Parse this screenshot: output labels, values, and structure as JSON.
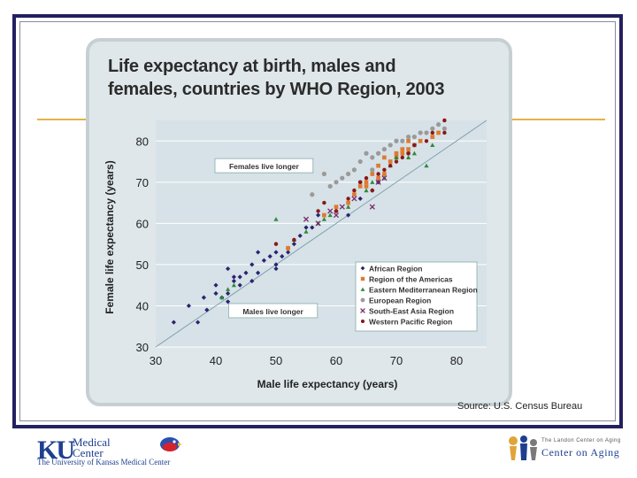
{
  "slide": {
    "source_text": "Source: U.S. Census Bureau",
    "colors": {
      "frame": "#232060",
      "accent_line": "#e3b24a",
      "card": "#dfe7ea",
      "plot_bg": "#d6e2e7"
    },
    "logo_left": {
      "mark": "KU",
      "medical": "Medical",
      "center": "Center",
      "subtitle": "The University of Kansas Medical Center"
    },
    "logo_right": {
      "top_line": "The Landon Center on Aging",
      "main": "Center on Aging"
    }
  },
  "chart_data": {
    "type": "scatter",
    "title_line1": "Life expectancy at birth, males and",
    "title_line2": "females, countries by WHO Region, 2003",
    "xlabel": "Male life expectancy (years)",
    "ylabel": "Female life expectancy (years)",
    "xlim": [
      30,
      85
    ],
    "ylim": [
      30,
      85
    ],
    "x_ticks": [
      30,
      40,
      50,
      60,
      70,
      80
    ],
    "y_ticks": [
      30,
      40,
      50,
      60,
      70,
      80
    ],
    "grid": true,
    "reference_line": {
      "from": [
        30,
        30
      ],
      "to": [
        85,
        85
      ]
    },
    "annotations": [
      {
        "text": "Females live longer",
        "x": 48,
        "y": 73.8
      },
      {
        "text": "Males live longer",
        "x": 49.5,
        "y": 38.6
      }
    ],
    "legend_position": "bottom-right",
    "series": [
      {
        "name": "African Region",
        "color": "#2a2370",
        "marker": "diamond",
        "points": [
          [
            33,
            36
          ],
          [
            35.5,
            40
          ],
          [
            37,
            36
          ],
          [
            38,
            42
          ],
          [
            38.5,
            39
          ],
          [
            40,
            43
          ],
          [
            40,
            45
          ],
          [
            41,
            42
          ],
          [
            42,
            41
          ],
          [
            42,
            43
          ],
          [
            42,
            49
          ],
          [
            43,
            46
          ],
          [
            43,
            47
          ],
          [
            44,
            45
          ],
          [
            44,
            47
          ],
          [
            45,
            48
          ],
          [
            46,
            50
          ],
          [
            46,
            46
          ],
          [
            47,
            48
          ],
          [
            47,
            53
          ],
          [
            48,
            51
          ],
          [
            49,
            52
          ],
          [
            50,
            49
          ],
          [
            50,
            53
          ],
          [
            50,
            50
          ],
          [
            51,
            52
          ],
          [
            52,
            53
          ],
          [
            52,
            54
          ],
          [
            53,
            55
          ],
          [
            54,
            57
          ],
          [
            55,
            59
          ],
          [
            56,
            59
          ],
          [
            57,
            62
          ],
          [
            60,
            63
          ],
          [
            62,
            62
          ],
          [
            64,
            66
          ],
          [
            66,
            68
          ],
          [
            67,
            70
          ]
        ]
      },
      {
        "name": "Region of the Americas",
        "color": "#e07a2f",
        "marker": "square",
        "points": [
          [
            52,
            54
          ],
          [
            58,
            62
          ],
          [
            60,
            64
          ],
          [
            62,
            65
          ],
          [
            63,
            67
          ],
          [
            64,
            69
          ],
          [
            65,
            70
          ],
          [
            65,
            69
          ],
          [
            66,
            72
          ],
          [
            67,
            71
          ],
          [
            67,
            74
          ],
          [
            68,
            72
          ],
          [
            68,
            76
          ],
          [
            69,
            75
          ],
          [
            70,
            76
          ],
          [
            70,
            77
          ],
          [
            71,
            77
          ],
          [
            71,
            78
          ],
          [
            72,
            78
          ],
          [
            72,
            80
          ],
          [
            73,
            79
          ],
          [
            74,
            80
          ],
          [
            76,
            81
          ],
          [
            77,
            82
          ]
        ]
      },
      {
        "name": "Eastern Mediterranean Region",
        "color": "#2f8a3a",
        "marker": "triangle",
        "points": [
          [
            41,
            42
          ],
          [
            42,
            44
          ],
          [
            43,
            45
          ],
          [
            50,
            61
          ],
          [
            53,
            56
          ],
          [
            55,
            58
          ],
          [
            57,
            60
          ],
          [
            58,
            61
          ],
          [
            59,
            62
          ],
          [
            62,
            64
          ],
          [
            65,
            68
          ],
          [
            66,
            70
          ],
          [
            68,
            71
          ],
          [
            69,
            74
          ],
          [
            70,
            76
          ],
          [
            72,
            76
          ],
          [
            73,
            77
          ],
          [
            75,
            74
          ],
          [
            76,
            79
          ]
        ]
      },
      {
        "name": "European Region",
        "color": "#9a9a9a",
        "marker": "circle",
        "points": [
          [
            56,
            67
          ],
          [
            58,
            72
          ],
          [
            59,
            69
          ],
          [
            60,
            70
          ],
          [
            61,
            71
          ],
          [
            62,
            72
          ],
          [
            63,
            73
          ],
          [
            64,
            75
          ],
          [
            65,
            77
          ],
          [
            66,
            76
          ],
          [
            67,
            77
          ],
          [
            68,
            78
          ],
          [
            69,
            79
          ],
          [
            70,
            80
          ],
          [
            71,
            80
          ],
          [
            72,
            81
          ],
          [
            73,
            81
          ],
          [
            74,
            82
          ],
          [
            75,
            82
          ],
          [
            76,
            83
          ],
          [
            77,
            84
          ],
          [
            78,
            83
          ],
          [
            73,
            79
          ],
          [
            72,
            77
          ],
          [
            66,
            73
          ],
          [
            64,
            70
          ]
        ]
      },
      {
        "name": "South-East Asia Region",
        "color": "#7a2a6a",
        "marker": "x",
        "points": [
          [
            55,
            61
          ],
          [
            57,
            60
          ],
          [
            59,
            63
          ],
          [
            60,
            62
          ],
          [
            61,
            64
          ],
          [
            63,
            66
          ],
          [
            66,
            64
          ],
          [
            67,
            70
          ],
          [
            68,
            71
          ]
        ]
      },
      {
        "name": "Western Pacific Region",
        "color": "#8a1818",
        "marker": "circle-small",
        "points": [
          [
            50,
            55
          ],
          [
            53,
            56
          ],
          [
            57,
            63
          ],
          [
            58,
            65
          ],
          [
            60,
            63
          ],
          [
            62,
            66
          ],
          [
            63,
            68
          ],
          [
            64,
            70
          ],
          [
            65,
            71
          ],
          [
            66,
            68
          ],
          [
            67,
            72
          ],
          [
            68,
            73
          ],
          [
            69,
            74
          ],
          [
            70,
            75
          ],
          [
            71,
            76
          ],
          [
            72,
            77
          ],
          [
            73,
            79
          ],
          [
            75,
            80
          ],
          [
            76,
            82
          ],
          [
            78,
            85
          ],
          [
            78,
            82
          ]
        ]
      }
    ]
  }
}
